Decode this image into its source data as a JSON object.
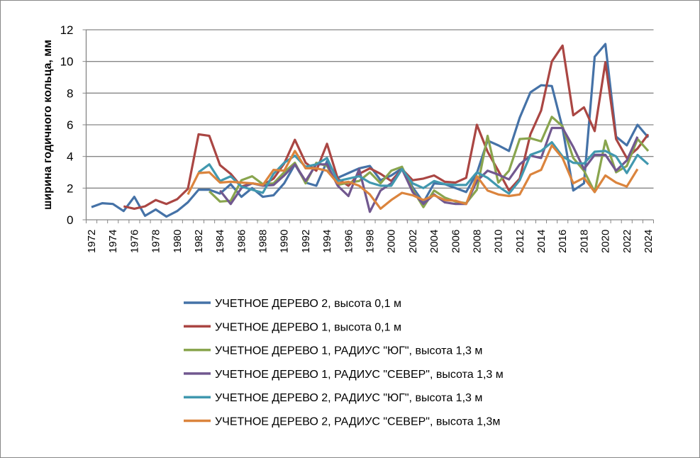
{
  "chart_data": {
    "type": "line",
    "title": "",
    "xlabel": "",
    "ylabel": "ширина годичного кольца, мм",
    "ylim": [
      0,
      12
    ],
    "yticks": [
      0,
      2,
      4,
      6,
      8,
      10,
      12
    ],
    "xlim": [
      1972,
      2024
    ],
    "xticks": [
      1972,
      1974,
      1976,
      1978,
      1980,
      1982,
      1984,
      1986,
      1988,
      1990,
      1992,
      1994,
      1996,
      1998,
      2000,
      2002,
      2004,
      2006,
      2008,
      2010,
      2012,
      2014,
      2016,
      2018,
      2020,
      2022,
      2024
    ],
    "grid": "horizontal",
    "legend_position": "bottom",
    "series": [
      {
        "name": "УЧЕТНОЕ ДЕРЕВО 2, высота 0,1 м",
        "color": "#4572A7",
        "start_year": 1972,
        "values": [
          0.8,
          1.05,
          1.0,
          0.55,
          1.45,
          0.25,
          0.65,
          0.2,
          0.55,
          1.1,
          1.9,
          1.9,
          1.65,
          2.25,
          1.45,
          2.0,
          1.45,
          1.55,
          2.3,
          3.5,
          2.35,
          2.15,
          3.7,
          2.65,
          2.95,
          3.25,
          3.4,
          2.5,
          2.8,
          3.25,
          2.05,
          1.1,
          2.3,
          2.25,
          2.0,
          1.75,
          2.95,
          5.0,
          4.7,
          4.35,
          6.45,
          8.05,
          8.5,
          8.45,
          5.8,
          1.85,
          2.3,
          10.3,
          11.1,
          5.25,
          4.7,
          6.0,
          5.2
        ]
      },
      {
        "name": "УЧЕТНОЕ ДЕРЕВО 1, высота 0,1 м",
        "color": "#AA4643",
        "start_year": 1975,
        "values": [
          0.85,
          0.7,
          0.85,
          1.25,
          1.0,
          1.3,
          1.95,
          5.4,
          5.3,
          3.45,
          2.9,
          2.1,
          2.3,
          2.2,
          2.6,
          3.55,
          5.05,
          3.6,
          3.1,
          4.8,
          2.6,
          2.15,
          2.9,
          3.25,
          2.9,
          2.45,
          3.2,
          2.5,
          2.6,
          2.8,
          2.4,
          2.35,
          2.65,
          6.0,
          4.3,
          3.1,
          1.85,
          2.6,
          5.4,
          6.9,
          10.0,
          11.0,
          6.6,
          7.1,
          5.6,
          9.95,
          5.1,
          3.9,
          4.5,
          5.4
        ]
      },
      {
        "name": "УЧЕТНОЕ ДЕРЕВО 1, РАДИУС \"ЮГ\", высота 1,3 м",
        "color": "#89A54E",
        "start_year": 1983,
        "values": [
          1.8,
          1.15,
          1.2,
          2.5,
          2.75,
          2.25,
          2.3,
          3.0,
          3.6,
          2.3,
          3.6,
          3.4,
          2.2,
          2.35,
          2.45,
          3.0,
          2.3,
          3.1,
          3.35,
          1.9,
          0.8,
          1.85,
          1.4,
          1.15,
          1.05,
          1.9,
          5.3,
          2.35,
          3.1,
          5.1,
          5.15,
          4.95,
          6.5,
          5.9,
          3.9,
          3.1,
          1.75,
          5.0,
          3.0,
          3.4,
          5.1,
          4.35
        ]
      },
      {
        "name": "УЧЕТНОЕ ДЕРЕВО 1, РАДИУС \"СЕВЕР\", высота 1,3 м",
        "color": "#71588F",
        "start_year": 1984,
        "values": [
          1.85,
          1.0,
          2.0,
          2.3,
          2.15,
          2.2,
          2.8,
          3.5,
          2.45,
          3.5,
          3.5,
          2.15,
          1.5,
          3.2,
          0.5,
          1.85,
          2.3,
          3.2,
          1.75,
          1.0,
          1.6,
          1.1,
          1.0,
          1.0,
          2.45,
          3.1,
          2.85,
          2.55,
          3.5,
          4.05,
          3.9,
          5.8,
          5.8,
          4.6,
          3.2,
          4.1,
          4.1,
          3.1,
          3.75,
          5.25
        ]
      },
      {
        "name": "УЧЕТНОЕ ДЕРЕВО 2, РАДИУС \"ЮГ\", высота 1,3 м",
        "color": "#4198AF",
        "start_year": 1982,
        "values": [
          3.0,
          3.5,
          2.45,
          2.75,
          2.1,
          1.9,
          1.7,
          2.9,
          3.6,
          4.05,
          3.35,
          3.5,
          3.9,
          2.45,
          2.6,
          2.75,
          2.35,
          2.15,
          2.15,
          3.2,
          2.3,
          2.0,
          2.45,
          2.25,
          2.2,
          2.2,
          3.0,
          2.65,
          2.1,
          1.65,
          2.5,
          4.1,
          4.35,
          4.9,
          4.0,
          3.6,
          3.55,
          4.3,
          4.35,
          4.0,
          2.95,
          4.1,
          3.5
        ]
      },
      {
        "name": "УЧЕТНОЕ ДЕРЕВО 2, РАДИУС \"СЕВЕР\", высота 1,3м",
        "color": "#DB843D",
        "start_year": 1981,
        "values": [
          1.6,
          2.95,
          3.0,
          2.35,
          2.4,
          2.35,
          2.3,
          2.2,
          3.15,
          3.1,
          4.35,
          3.25,
          3.25,
          3.1,
          2.3,
          2.4,
          2.15,
          1.6,
          0.7,
          1.25,
          1.7,
          1.55,
          1.25,
          1.55,
          1.25,
          1.2,
          1.0,
          2.75,
          1.85,
          1.6,
          1.5,
          1.6,
          2.85,
          3.15,
          4.7,
          3.9,
          2.3,
          2.65,
          1.75,
          2.8,
          2.35,
          2.1,
          3.2
        ]
      }
    ]
  }
}
